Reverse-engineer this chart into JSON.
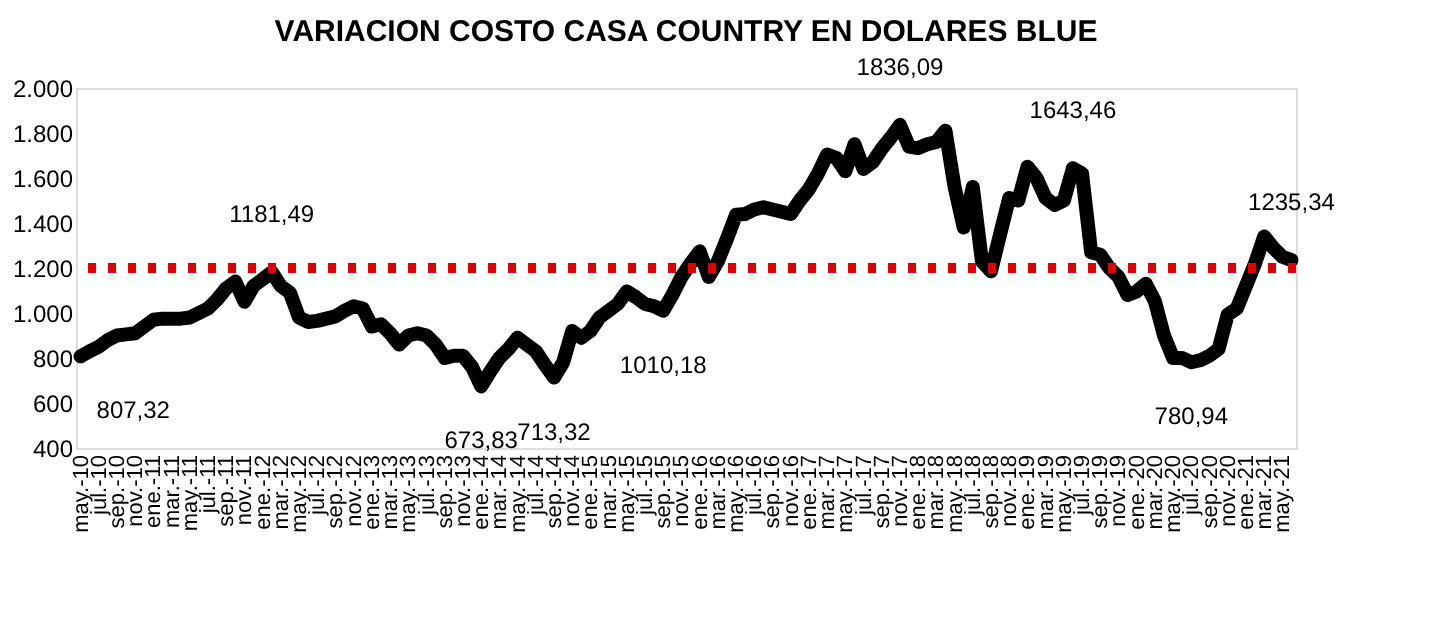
{
  "chart_data": {
    "type": "line",
    "title": "VARIACION COSTO CASA COUNTRY EN DOLARES BLUE",
    "categories": [
      "may.-10",
      null,
      "jul.-10",
      null,
      "sep.-10",
      null,
      "nov.-10",
      null,
      "ene.-11",
      null,
      "mar.-11",
      null,
      "may.-11",
      null,
      "jul.-11",
      null,
      "sep.-11",
      null,
      "nov.-11",
      null,
      "ene.-12",
      null,
      "mar.-12",
      null,
      "may.-12",
      null,
      "jul.-12",
      null,
      "sep.-12",
      null,
      "nov.-12",
      null,
      "ene.-13",
      null,
      "mar.-13",
      null,
      "may.-13",
      null,
      "jul.-13",
      null,
      "sep.-13",
      null,
      "nov.-13",
      null,
      "ene.-14",
      null,
      "mar.-14",
      null,
      "may.-14",
      null,
      "jul.-14",
      null,
      "sep.-14",
      null,
      "nov.-14",
      null,
      "ene.-15",
      null,
      "mar.-15",
      null,
      "may.-15",
      null,
      "jul.-15",
      null,
      "sep.-15",
      null,
      "nov.-15",
      null,
      "ene.-16",
      null,
      "mar.-16",
      null,
      "may.-16",
      null,
      "jul.-16",
      null,
      "sep.-16",
      null,
      "nov.-16",
      null,
      "ene.-17",
      null,
      "mar.-17",
      null,
      "may.-17",
      null,
      "jul.-17",
      null,
      "sep.-17",
      null,
      "nov.-17",
      null,
      "ene.-18",
      null,
      "mar.-18",
      null,
      "may.-18",
      null,
      "jul.-18",
      null,
      "sep.-18",
      null,
      "nov.-18",
      null,
      "ene.-19",
      null,
      "mar.-19",
      null,
      "may.-19",
      null,
      "jul.-19",
      null,
      "sep.-19",
      null,
      "nov.-19",
      null,
      "ene.-20",
      null,
      "mar.-20",
      null,
      "may.-20",
      null,
      "jul.-20",
      null,
      "sep.-20",
      null,
      "nov.-20",
      null,
      "ene.-21",
      null,
      "mar.-21",
      null,
      "may.-21",
      null
    ],
    "series": [
      {
        "color": "#000000",
        "values": [
          807.32,
          830,
          850,
          880,
          900,
          905,
          910,
          940,
          970,
          975,
          975,
          975,
          980,
          1000,
          1020,
          1060,
          1110,
          1140,
          1050,
          1120,
          1150,
          1181.49,
          1120,
          1090,
          980,
          960,
          965,
          975,
          985,
          1010,
          1030,
          1020,
          940,
          950,
          910,
          860,
          900,
          910,
          900,
          860,
          800,
          810,
          810,
          760,
          673.83,
          740,
          800,
          840,
          890,
          860,
          830,
          770,
          713.32,
          780,
          920,
          890,
          920,
          980,
          1010,
          1040,
          1096,
          1070,
          1040,
          1030,
          1010.18,
          1080,
          1160,
          1220,
          1274,
          1160,
          1230,
          1330,
          1437,
          1440,
          1460,
          1470,
          1460,
          1450,
          1440,
          1500,
          1550,
          1620,
          1704,
          1690,
          1630,
          1750,
          1640,
          1670,
          1730,
          1780,
          1836.09,
          1740,
          1733,
          1750,
          1760,
          1810,
          1560,
          1380,
          1560,
          1230,
          1185,
          1350,
          1511,
          1500,
          1650,
          1600,
          1511,
          1480,
          1500,
          1643.46,
          1620,
          1270,
          1259,
          1200,
          1161,
          1080,
          1096,
          1130,
          1052,
          900,
          800,
          800,
          780.94,
          790,
          810,
          840,
          993,
          1020,
          1120,
          1220,
          1340,
          1290,
          1250,
          1235.34
        ],
        "value_labels": [
          "807,32",
          null,
          null,
          null,
          null,
          null,
          null,
          null,
          null,
          null,
          null,
          null,
          null,
          null,
          null,
          null,
          null,
          null,
          null,
          null,
          null,
          "1181,49",
          null,
          null,
          null,
          null,
          null,
          null,
          null,
          null,
          null,
          null,
          null,
          null,
          null,
          null,
          null,
          null,
          null,
          null,
          null,
          null,
          null,
          null,
          "673,83",
          null,
          null,
          null,
          null,
          null,
          null,
          null,
          "713,32",
          null,
          null,
          null,
          null,
          null,
          null,
          null,
          null,
          null,
          null,
          null,
          "1010,18",
          null,
          null,
          null,
          null,
          null,
          null,
          null,
          null,
          null,
          null,
          null,
          null,
          null,
          null,
          null,
          null,
          null,
          null,
          null,
          null,
          null,
          null,
          null,
          null,
          null,
          "1836,09",
          null,
          null,
          null,
          null,
          null,
          null,
          null,
          null,
          null,
          null,
          null,
          null,
          null,
          null,
          null,
          null,
          null,
          null,
          "1643,46",
          null,
          null,
          null,
          null,
          null,
          null,
          null,
          null,
          null,
          null,
          null,
          null,
          "780,94",
          null,
          null,
          null,
          null,
          null,
          null,
          null,
          null,
          null,
          null,
          "1235,34"
        ]
      }
    ],
    "ylim": [
      400,
      2000
    ],
    "yticks": [
      400,
      600,
      800,
      {
        "value": 1000,
        "label": "1.000"
      },
      {
        "value": 1200,
        "label": "1.200"
      },
      {
        "value": 1400,
        "label": "1.400"
      },
      {
        "value": 1600,
        "label": "1.600"
      },
      {
        "value": 1800,
        "label": "1.800"
      },
      {
        "value": 2000,
        "label": "2.000"
      }
    ],
    "ref_lines": [
      {
        "axis": "y",
        "value": 1200,
        "color": "#e00000",
        "line_style": "dotted"
      }
    ],
    "grid": false,
    "line_style": "solid"
  }
}
